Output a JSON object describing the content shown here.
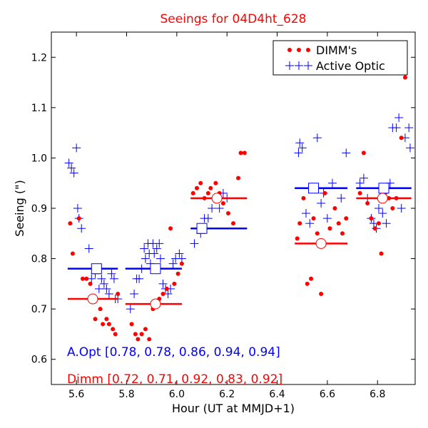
{
  "chart_data": {
    "type": "scatter",
    "title": "Seeings for 04D4ht_628",
    "xlabel": "Hour (UT at MMJD+1)",
    "ylabel": "Seeing (\")",
    "xlim": [
      5.5,
      6.95
    ],
    "ylim": [
      0.55,
      1.25
    ],
    "x_ticks": [
      5.6,
      5.8,
      6.0,
      6.2,
      6.4,
      6.6,
      6.8
    ],
    "y_ticks": [
      0.6,
      0.7,
      0.8,
      0.9,
      1.0,
      1.1,
      1.2
    ],
    "x_tick_labels": [
      "5.6",
      "5.8",
      "6.0",
      "6.2",
      "6.4",
      "6.6",
      "6.8"
    ],
    "y_tick_labels": [
      "0.6",
      "0.7",
      "0.8",
      "0.9",
      "1.0",
      "1.1",
      "1.2"
    ],
    "grid": false,
    "legend_position": "top-right",
    "colors": {
      "dimm": "#ff0000",
      "active_optic": "#0000ff",
      "title": "#ff0000"
    },
    "series": [
      {
        "name": "DIMM's",
        "marker": "dot",
        "points": [
          [
            5.575,
            0.87
          ],
          [
            5.585,
            0.81
          ],
          [
            5.61,
            0.88
          ],
          [
            5.625,
            0.76
          ],
          [
            5.64,
            0.76
          ],
          [
            5.655,
            0.75
          ],
          [
            5.665,
            0.72
          ],
          [
            5.675,
            0.68
          ],
          [
            5.695,
            0.7
          ],
          [
            5.705,
            0.67
          ],
          [
            5.72,
            0.68
          ],
          [
            5.73,
            0.67
          ],
          [
            5.745,
            0.66
          ],
          [
            5.755,
            0.65
          ],
          [
            5.765,
            0.73
          ],
          [
            5.82,
            0.67
          ],
          [
            5.835,
            0.65
          ],
          [
            5.845,
            0.64
          ],
          [
            5.86,
            0.65
          ],
          [
            5.875,
            0.66
          ],
          [
            5.89,
            0.64
          ],
          [
            5.905,
            0.7
          ],
          [
            5.915,
            0.71
          ],
          [
            5.93,
            0.72
          ],
          [
            5.945,
            0.73
          ],
          [
            5.96,
            0.74
          ],
          [
            5.975,
            0.86
          ],
          [
            5.99,
            0.75
          ],
          [
            6.005,
            0.77
          ],
          [
            6.02,
            0.79
          ],
          [
            6.065,
            0.93
          ],
          [
            6.08,
            0.94
          ],
          [
            6.095,
            0.95
          ],
          [
            6.11,
            0.92
          ],
          [
            6.125,
            0.93
          ],
          [
            6.135,
            0.94
          ],
          [
            6.155,
            0.95
          ],
          [
            6.17,
            0.93
          ],
          [
            6.185,
            0.91
          ],
          [
            6.205,
            0.89
          ],
          [
            6.225,
            0.87
          ],
          [
            6.245,
            0.96
          ],
          [
            6.255,
            1.01
          ],
          [
            6.27,
            1.01
          ],
          [
            6.48,
            0.84
          ],
          [
            6.49,
            0.87
          ],
          [
            6.505,
            0.92
          ],
          [
            6.52,
            0.75
          ],
          [
            6.535,
            0.76
          ],
          [
            6.545,
            0.88
          ],
          [
            6.56,
            0.85
          ],
          [
            6.575,
            0.73
          ],
          [
            6.59,
            0.93
          ],
          [
            6.61,
            0.86
          ],
          [
            6.63,
            0.9
          ],
          [
            6.645,
            0.87
          ],
          [
            6.66,
            0.85
          ],
          [
            6.675,
            0.88
          ],
          [
            6.73,
            0.93
          ],
          [
            6.745,
            1.01
          ],
          [
            6.76,
            0.91
          ],
          [
            6.775,
            0.88
          ],
          [
            6.79,
            0.86
          ],
          [
            6.805,
            0.87
          ],
          [
            6.815,
            0.81
          ],
          [
            6.83,
            0.93
          ],
          [
            6.845,
            0.92
          ],
          [
            6.86,
            0.9
          ],
          [
            6.875,
            0.92
          ],
          [
            6.895,
            1.04
          ],
          [
            6.91,
            1.16
          ]
        ]
      },
      {
        "name": "Active Optic",
        "marker": "plus",
        "points": [
          [
            5.57,
            0.99
          ],
          [
            5.58,
            0.98
          ],
          [
            5.59,
            0.97
          ],
          [
            5.6,
            1.02
          ],
          [
            5.605,
            0.9
          ],
          [
            5.61,
            0.88
          ],
          [
            5.62,
            0.86
          ],
          [
            5.65,
            0.82
          ],
          [
            5.66,
            0.76
          ],
          [
            5.675,
            0.77
          ],
          [
            5.69,
            0.74
          ],
          [
            5.7,
            0.76
          ],
          [
            5.71,
            0.75
          ],
          [
            5.72,
            0.74
          ],
          [
            5.73,
            0.73
          ],
          [
            5.74,
            0.77
          ],
          [
            5.75,
            0.76
          ],
          [
            5.755,
            0.72
          ],
          [
            5.765,
            0.72
          ],
          [
            5.815,
            0.7
          ],
          [
            5.83,
            0.73
          ],
          [
            5.84,
            0.76
          ],
          [
            5.85,
            0.76
          ],
          [
            5.86,
            0.78
          ],
          [
            5.87,
            0.82
          ],
          [
            5.875,
            0.8
          ],
          [
            5.885,
            0.83
          ],
          [
            5.89,
            0.81
          ],
          [
            5.895,
            0.79
          ],
          [
            5.905,
            0.83
          ],
          [
            5.91,
            0.81
          ],
          [
            5.92,
            0.82
          ],
          [
            5.93,
            0.83
          ],
          [
            5.935,
            0.8
          ],
          [
            5.945,
            0.75
          ],
          [
            5.955,
            0.74
          ],
          [
            5.965,
            0.73
          ],
          [
            5.975,
            0.74
          ],
          [
            5.985,
            0.79
          ],
          [
            5.995,
            0.8
          ],
          [
            6.01,
            0.81
          ],
          [
            6.02,
            0.8
          ],
          [
            6.07,
            0.83
          ],
          [
            6.085,
            0.86
          ],
          [
            6.095,
            0.85
          ],
          [
            6.11,
            0.88
          ],
          [
            6.125,
            0.88
          ],
          [
            6.14,
            0.9
          ],
          [
            6.155,
            0.92
          ],
          [
            6.17,
            0.9
          ],
          [
            6.185,
            0.93
          ],
          [
            6.2,
            0.92
          ],
          [
            6.485,
            1.01
          ],
          [
            6.49,
            1.03
          ],
          [
            6.5,
            1.02
          ],
          [
            6.515,
            0.89
          ],
          [
            6.53,
            0.87
          ],
          [
            6.545,
            0.94
          ],
          [
            6.56,
            1.04
          ],
          [
            6.575,
            0.91
          ],
          [
            6.585,
            0.93
          ],
          [
            6.6,
            0.88
          ],
          [
            6.62,
            0.95
          ],
          [
            6.655,
            0.92
          ],
          [
            6.675,
            1.01
          ],
          [
            6.73,
            0.95
          ],
          [
            6.745,
            0.96
          ],
          [
            6.76,
            0.92
          ],
          [
            6.775,
            0.88
          ],
          [
            6.785,
            0.87
          ],
          [
            6.795,
            0.86
          ],
          [
            6.805,
            0.9
          ],
          [
            6.82,
            0.89
          ],
          [
            6.835,
            0.87
          ],
          [
            6.85,
            0.95
          ],
          [
            6.86,
            1.06
          ],
          [
            6.875,
            1.06
          ],
          [
            6.885,
            1.08
          ],
          [
            6.895,
            0.9
          ],
          [
            6.91,
            1.04
          ],
          [
            6.925,
            1.06
          ],
          [
            6.93,
            1.02
          ]
        ]
      }
    ],
    "bins": [
      {
        "x_start": 5.565,
        "x_end": 5.765,
        "ao_median": 0.78,
        "dimm_median": 0.72,
        "ao_center": 5.68,
        "dimm_center": 5.665
      },
      {
        "x_start": 5.795,
        "x_end": 6.02,
        "ao_median": 0.78,
        "dimm_median": 0.71,
        "ao_center": 5.915,
        "dimm_center": 5.915
      },
      {
        "x_start": 6.055,
        "x_end": 6.28,
        "ao_median": 0.86,
        "dimm_median": 0.92,
        "ao_center": 6.1,
        "dimm_center": 6.16
      },
      {
        "x_start": 6.47,
        "x_end": 6.68,
        "ao_median": 0.94,
        "dimm_median": 0.83,
        "ao_center": 6.545,
        "dimm_center": 6.575
      },
      {
        "x_start": 6.715,
        "x_end": 6.935,
        "ao_median": 0.94,
        "dimm_median": 0.92,
        "ao_center": 6.825,
        "dimm_center": 6.82
      }
    ],
    "annotations": {
      "ao_label": "A.Opt [0.78, 0.78, 0.86, 0.94, 0.94]",
      "dimm_label": "Dimm [0.72, 0.71, 0.92, 0.83, 0.92]"
    }
  }
}
